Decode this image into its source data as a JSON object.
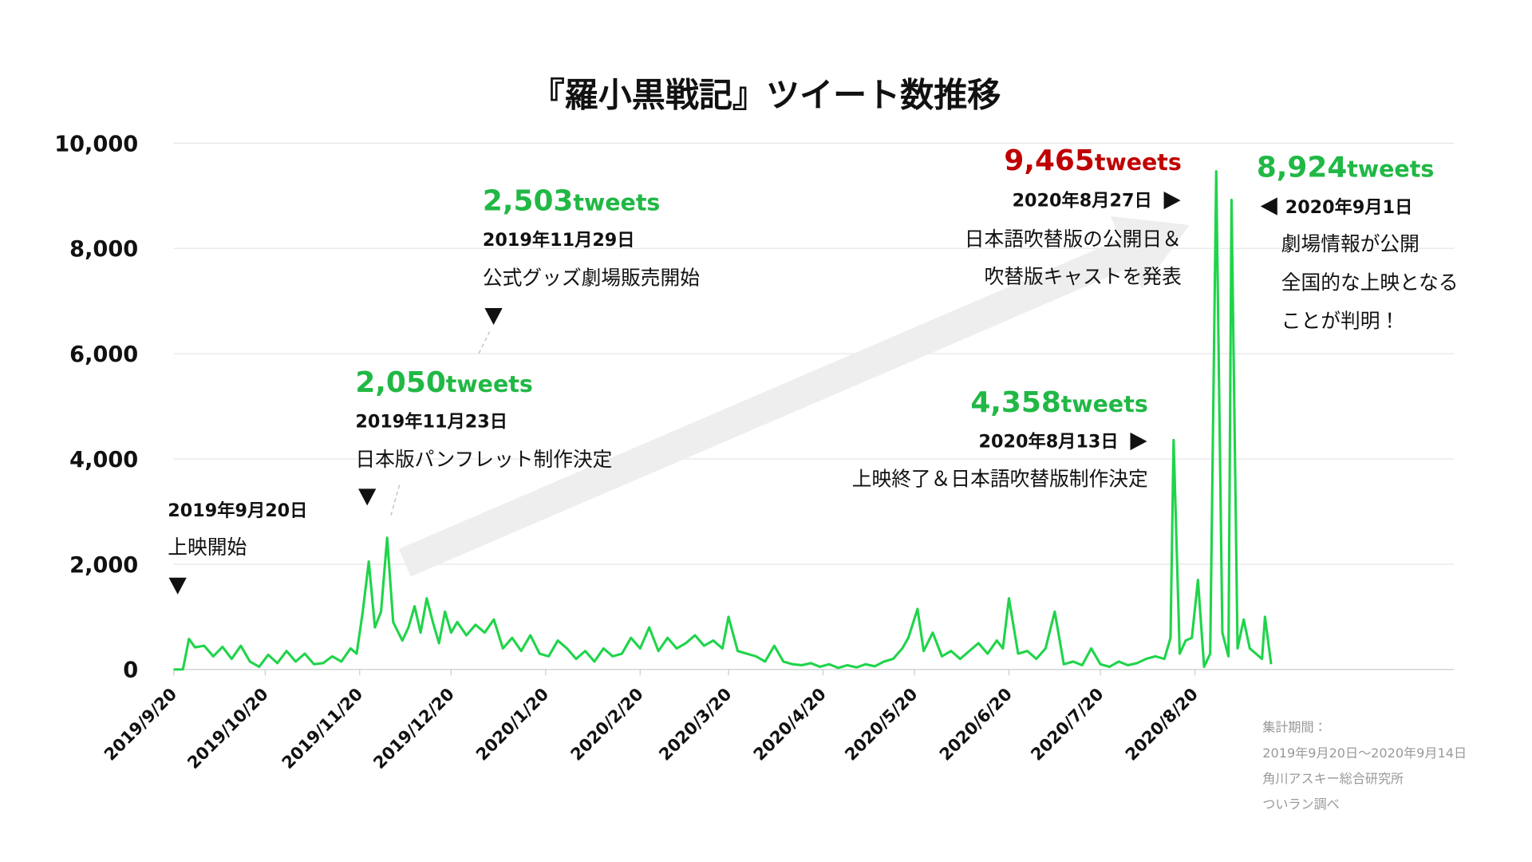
{
  "chart_data": {
    "type": "line",
    "title": "『羅小黒戦記』ツイート数推移",
    "color": "#1fd44a",
    "grid": true,
    "ylim": [
      0,
      10000
    ],
    "yticks": [
      0,
      {
        "value": 2000,
        "label": "2,000"
      },
      {
        "value": 4000,
        "label": "4,000"
      },
      {
        "value": 6000,
        "label": "6,000"
      },
      {
        "value": 8000,
        "label": "8,000"
      },
      {
        "value": 10000,
        "label": "10,000"
      }
    ],
    "xlim": [
      "2019/9/20",
      "2020/11/13"
    ],
    "xticks": [
      "2019/9/20",
      "2019/10/20",
      "2019/11/20",
      "2019/12/20",
      "2020/1/20",
      "2020/2/20",
      "2020/3/20",
      "2020/4/20",
      "2020/5/20",
      "2020/6/20",
      "2020/7/20",
      "2020/8/20"
    ],
    "x": [
      "2019/9/20",
      "2019/9/23",
      "2019/9/25",
      "2019/9/27",
      "2019/9/30",
      "2019/10/3",
      "2019/10/6",
      "2019/10/9",
      "2019/10/12",
      "2019/10/15",
      "2019/10/18",
      "2019/10/21",
      "2019/10/24",
      "2019/10/27",
      "2019/10/30",
      "2019/11/2",
      "2019/11/5",
      "2019/11/8",
      "2019/11/11",
      "2019/11/14",
      "2019/11/17",
      "2019/11/19",
      "2019/11/21",
      "2019/11/23",
      "2019/11/25",
      "2019/11/27",
      "2019/11/29",
      "2019/12/1",
      "2019/12/4",
      "2019/12/6",
      "2019/12/8",
      "2019/12/10",
      "2019/12/12",
      "2019/12/14",
      "2019/12/16",
      "2019/12/18",
      "2019/12/20",
      "2019/12/22",
      "2019/12/25",
      "2019/12/28",
      "2019/12/31",
      "2020/1/3",
      "2020/1/6",
      "2020/1/9",
      "2020/1/12",
      "2020/1/15",
      "2020/1/18",
      "2020/1/21",
      "2020/1/24",
      "2020/1/27",
      "2020/1/30",
      "2020/2/2",
      "2020/2/5",
      "2020/2/8",
      "2020/2/11",
      "2020/2/14",
      "2020/2/17",
      "2020/2/20",
      "2020/2/23",
      "2020/2/26",
      "2020/2/29",
      "2020/3/3",
      "2020/3/6",
      "2020/3/9",
      "2020/3/12",
      "2020/3/15",
      "2020/3/18",
      "2020/3/20",
      "2020/3/23",
      "2020/3/26",
      "2020/3/29",
      "2020/4/1",
      "2020/4/4",
      "2020/4/7",
      "2020/4/10",
      "2020/4/13",
      "2020/4/16",
      "2020/4/19",
      "2020/4/22",
      "2020/4/25",
      "2020/4/28",
      "2020/5/1",
      "2020/5/4",
      "2020/5/7",
      "2020/5/10",
      "2020/5/13",
      "2020/5/16",
      "2020/5/18",
      "2020/5/21",
      "2020/5/23",
      "2020/5/26",
      "2020/5/29",
      "2020/6/1",
      "2020/6/4",
      "2020/6/7",
      "2020/6/10",
      "2020/6/13",
      "2020/6/16",
      "2020/6/18",
      "2020/6/20",
      "2020/6/23",
      "2020/6/26",
      "2020/6/29",
      "2020/7/2",
      "2020/7/5",
      "2020/7/8",
      "2020/7/11",
      "2020/7/14",
      "2020/7/17",
      "2020/7/20",
      "2020/7/23",
      "2020/7/26",
      "2020/7/29",
      "2020/8/1",
      "2020/8/4",
      "2020/8/7",
      "2020/8/10",
      "2020/8/12",
      "2020/8/13",
      "2020/8/15",
      "2020/8/17",
      "2020/8/19",
      "2020/8/21",
      "2020/8/23",
      "2020/8/25",
      "2020/8/27",
      "2020/8/29",
      "2020/8/31",
      "2020/9/1",
      "2020/9/3",
      "2020/9/5",
      "2020/9/7",
      "2020/9/9",
      "2020/9/11",
      "2020/9/12",
      "2020/9/14"
    ],
    "values": [
      0,
      0,
      580,
      420,
      450,
      250,
      430,
      200,
      450,
      150,
      50,
      280,
      120,
      350,
      150,
      300,
      100,
      120,
      250,
      150,
      400,
      300,
      1100,
      2050,
      800,
      1100,
      2503,
      900,
      550,
      800,
      1200,
      700,
      1350,
      900,
      500,
      1100,
      700,
      900,
      650,
      850,
      700,
      950,
      400,
      600,
      350,
      650,
      300,
      250,
      550,
      400,
      200,
      350,
      150,
      400,
      250,
      300,
      600,
      400,
      800,
      350,
      600,
      400,
      500,
      650,
      450,
      550,
      400,
      1000,
      350,
      300,
      250,
      150,
      450,
      150,
      100,
      80,
      120,
      50,
      100,
      30,
      80,
      40,
      100,
      60,
      150,
      200,
      400,
      600,
      1150,
      350,
      700,
      250,
      350,
      200,
      350,
      500,
      300,
      550,
      400,
      1350,
      300,
      350,
      200,
      400,
      1100,
      100,
      150,
      80,
      400,
      100,
      50,
      150,
      80,
      120,
      200,
      250,
      200,
      600,
      4358,
      300,
      550,
      600,
      1700,
      50,
      300,
      9465,
      700,
      250,
      8924,
      400,
      950,
      400,
      300,
      200,
      1000,
      100
    ],
    "annotations": [
      {
        "date": "2019年9月20日",
        "lines": [
          "上映開始"
        ]
      },
      {
        "count": "2,050",
        "unit": "tweets",
        "color": "#21b845",
        "date": "2019年11月23日",
        "lines": [
          "日本版パンフレット制作決定"
        ]
      },
      {
        "count": "2,503",
        "unit": "tweets",
        "color": "#21b845",
        "date": "2019年11月29日",
        "lines": [
          "公式グッズ劇場販売開始"
        ]
      },
      {
        "count": "9,465",
        "unit": "tweets",
        "color": "#c00000",
        "date": "2020年8月27日",
        "lines": [
          "日本語吹替版の公開日＆",
          "吹替版キャストを発表"
        ]
      },
      {
        "count": "4,358",
        "unit": "tweets",
        "color": "#21b845",
        "date": "2020年8月13日",
        "lines": [
          "上映終了＆日本語吹替版制作決定"
        ]
      },
      {
        "count": "8,924",
        "unit": "tweets",
        "color": "#21b845",
        "date": "2020年9月1日",
        "lines": [
          "劇場情報が公開",
          "全国的な上映となる",
          "ことが判明！"
        ]
      }
    ],
    "footnote": [
      "集計期間：",
      "2019年9月20日～2020年9月14日",
      "角川アスキー総合研究所",
      "ついラン調べ"
    ]
  }
}
